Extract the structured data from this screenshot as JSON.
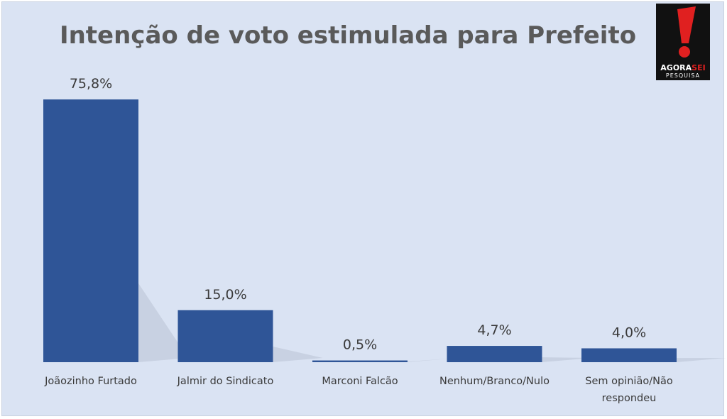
{
  "logo": {
    "line1_part1": "AGORA",
    "line1_part2": "SEI",
    "line2": "PESQUISA",
    "colors": {
      "background": "#111111",
      "accent": "#e02020"
    }
  },
  "chart_data": {
    "type": "bar",
    "title": "Intenção de voto estimulada para Prefeito",
    "categories": [
      "Joãozinho Furtado",
      "Jalmir do Sindicato",
      "Marconi Falcão",
      "Nenhum/Branco/Nulo",
      "Sem opinião/Não respondeu"
    ],
    "category_lines": [
      [
        "Joãozinho Furtado"
      ],
      [
        "Jalmir do Sindicato"
      ],
      [
        "Marconi Falcão"
      ],
      [
        "Nenhum/Branco/Nulo"
      ],
      [
        "Sem opinião/Não",
        "respondeu"
      ]
    ],
    "values": [
      75.8,
      15.0,
      0.5,
      4.7,
      4.0
    ],
    "data_labels": [
      "75,8%",
      "15,0%",
      "0,5%",
      "4,7%",
      "4,0%"
    ],
    "ylim": [
      0,
      75.8
    ],
    "grid": false,
    "legend": "none",
    "colors": {
      "bar": "#2f5597",
      "background": "#dae3f3",
      "text": "#3a3a3a"
    }
  }
}
